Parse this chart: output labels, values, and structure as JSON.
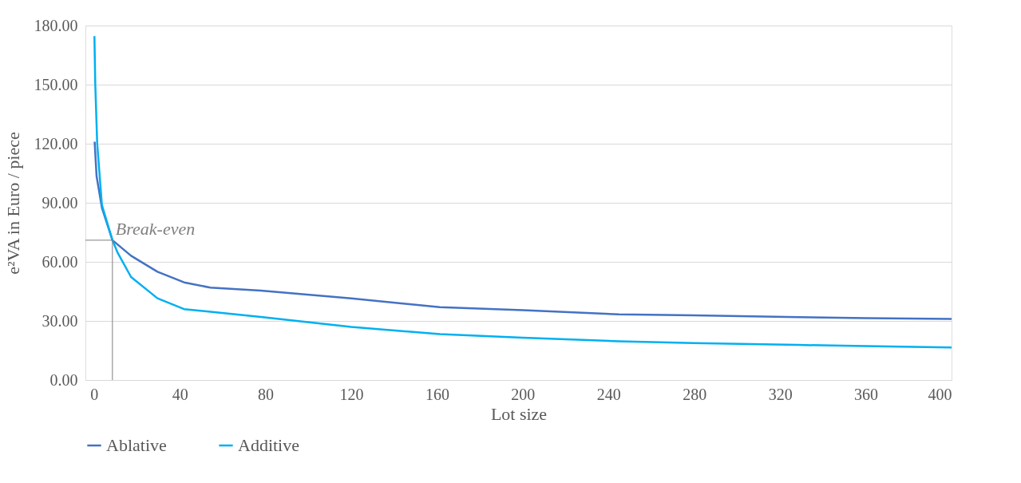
{
  "chart_data": {
    "type": "line",
    "xlabel": "Lot size",
    "ylabel": "e²VA in Euro / piece",
    "xlim": [
      -4,
      400
    ],
    "xticks": [
      0,
      40,
      80,
      120,
      160,
      200,
      240,
      280,
      320,
      360,
      400
    ],
    "ylim": [
      0,
      180
    ],
    "yticks": [
      {
        "value": 0,
        "label": "0.00"
      },
      {
        "value": 30,
        "label": "30.00"
      },
      {
        "value": 60,
        "label": "60.00"
      },
      {
        "value": 90,
        "label": "90.00"
      },
      {
        "value": 120,
        "label": "120.00"
      },
      {
        "value": 150,
        "label": "150.00"
      },
      {
        "value": 180,
        "label": "180.00"
      }
    ],
    "grid": "y",
    "legend": "bottom",
    "annotations": [
      {
        "text": "Break-even",
        "x": 8.6,
        "y": 71
      }
    ],
    "series": [
      {
        "name": "Ablative",
        "color": "#4472c4",
        "x": [
          0.3,
          1.2,
          3.7,
          8.6,
          17.3,
          29.6,
          42,
          54.3,
          77.8,
          120,
          161.3,
          200,
          244.8,
          280,
          328.5,
          360,
          400
        ],
        "values": [
          121,
          103.6,
          87.4,
          71,
          63.1,
          55,
          49.6,
          46.9,
          45.4,
          41.5,
          37,
          35.5,
          33.3,
          32.8,
          31.9,
          31.4,
          31
        ]
      },
      {
        "name": "Additive",
        "color": "#00b0f0",
        "x": [
          0.2,
          0.6,
          1.5,
          3.7,
          8.6,
          11.1,
          17.3,
          29.6,
          42,
          77.8,
          120,
          161.3,
          200,
          244.8,
          280,
          328.5,
          360,
          400
        ],
        "values": [
          174.6,
          150,
          120,
          88.8,
          71,
          64.5,
          52.3,
          41.5,
          36,
          32,
          27,
          23.3,
          21.5,
          19.7,
          18.8,
          17.8,
          17.2,
          16.5
        ]
      }
    ]
  }
}
